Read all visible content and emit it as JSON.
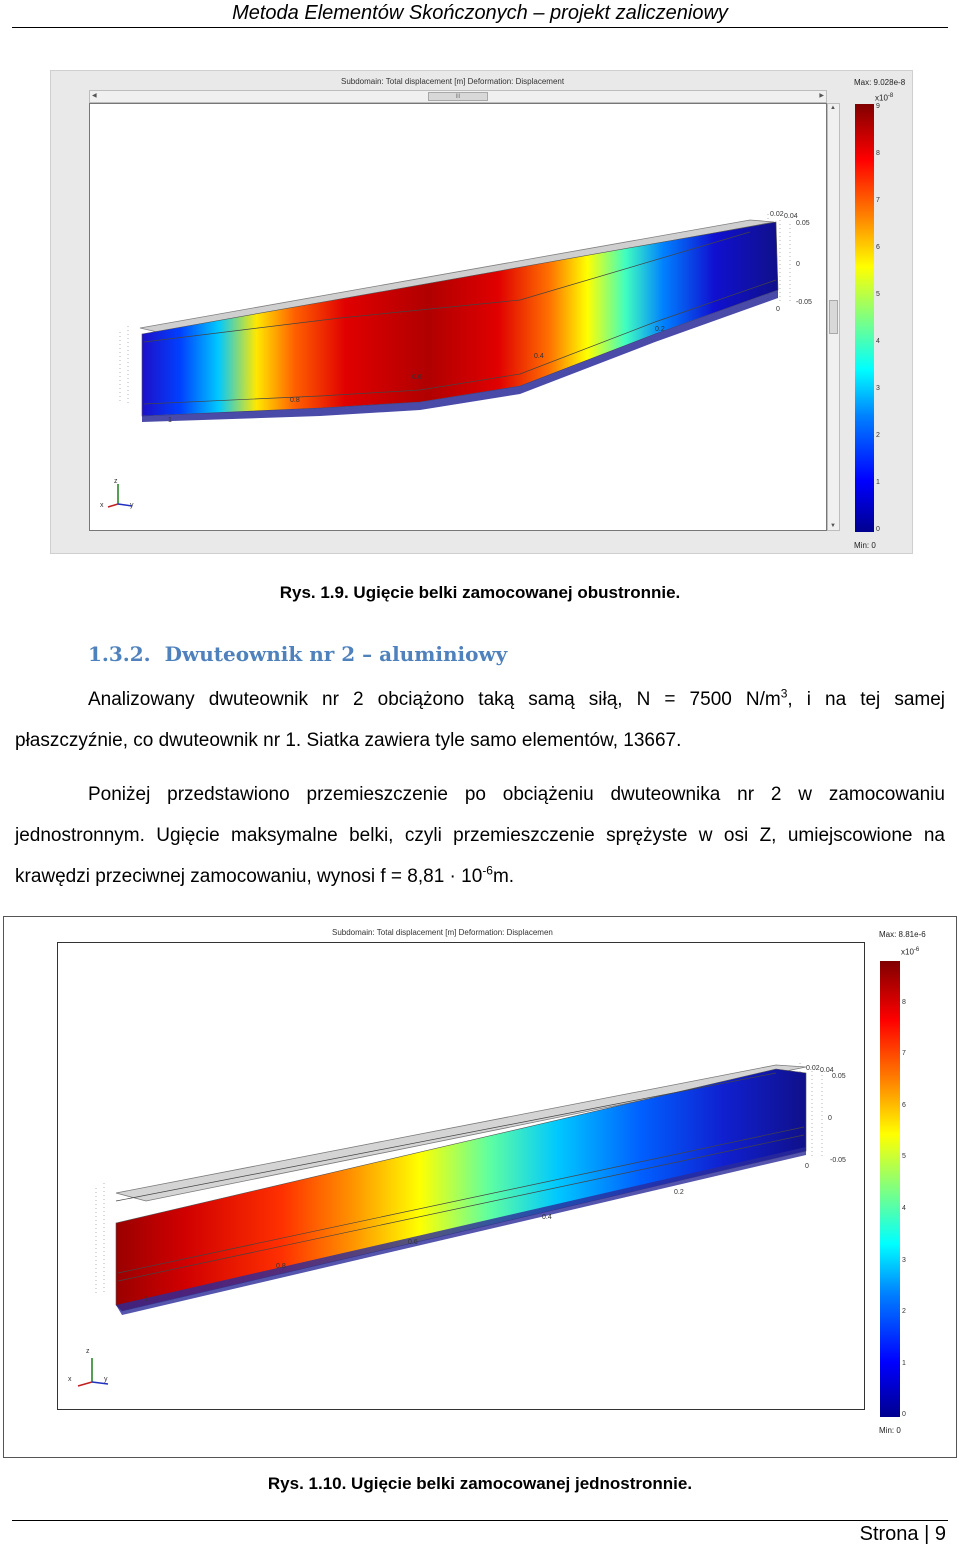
{
  "header": {
    "title": "Metoda Elementów Skończonych – projekt zaliczeniowy"
  },
  "figure1": {
    "plot_title": "Subdomain: Total displacement [m]   Deformation: Displacement",
    "colorbar": {
      "max_label": "Max: 9.028e-8",
      "exponent_base": "x10",
      "exponent": "-8",
      "ticks": [
        "9",
        "8",
        "7",
        "6",
        "5",
        "4",
        "3",
        "2",
        "1",
        "0"
      ],
      "min_label": "Min: 0"
    },
    "beam_labels": {
      "x0": "1",
      "x1": "0.8",
      "x2": "0.6",
      "x3": "0.4",
      "x4": "0.2",
      "x5": "0",
      "y1": "0.05",
      "y2": "0",
      "y3": "-0.05",
      "z1": "0.04",
      "z2": "0.02"
    },
    "scroll_thumb": "III",
    "axis": {
      "x": "x",
      "y": "y",
      "z": "z"
    },
    "caption": "Rys. 1.9. Ugięcie belki zamocowanej obustronnie."
  },
  "section": {
    "number": "1.3.2.",
    "title": "Dwuteownik nr 2 – aluminiowy"
  },
  "para1": {
    "line1_a": "Analizowany dwuteownik nr 2 obciążono taką samą siłą, N = 7500 N/m",
    "line1_sup": "3",
    "line1_b": ", i na tej samej",
    "line2": "płaszczyźnie, co dwuteownik nr 1. Siatka zawiera tyle samo elementów, 13667."
  },
  "para2": {
    "line1": "Poniżej przedstawiono przemieszczenie po obciążeniu dwuteownika nr 2 w zamocowaniu",
    "line2": "jednostronnym. Ugięcie maksymalne belki, czyli przemieszczenie sprężyste w osi Z, umiejscowione na",
    "line3_a": "krawędzi przeciwnej zamocowaniu, wynosi f = 8,81 · 10",
    "line3_sup": "-6",
    "line3_b": "m."
  },
  "figure2": {
    "plot_title": "Subdomain: Total displacement [m]   Deformation: Displacemen",
    "colorbar": {
      "max_label": "Max: 8.81e-6",
      "exponent_base": "x10",
      "exponent": "-6",
      "ticks": [
        "8",
        "7",
        "6",
        "5",
        "4",
        "3",
        "2",
        "1",
        "0"
      ],
      "min_label": "Min: 0"
    },
    "beam_labels": {
      "x0": "1",
      "x1": "0.8",
      "x2": "0.6",
      "x3": "0.4",
      "x4": "0.2",
      "x5": "0",
      "y1": "0.05",
      "y2": "0",
      "y3": "-0.05",
      "z1": "0.04",
      "z2": "0.02"
    },
    "axis": {
      "x": "x",
      "y": "y",
      "z": "z"
    },
    "caption": "Rys. 1.10. Ugięcie belki zamocowanej jednostronnie."
  },
  "footer": {
    "page_label": "Strona",
    "separator": "|",
    "page_number": "9"
  },
  "colors": {
    "heading_blue": "#4f81bd"
  }
}
